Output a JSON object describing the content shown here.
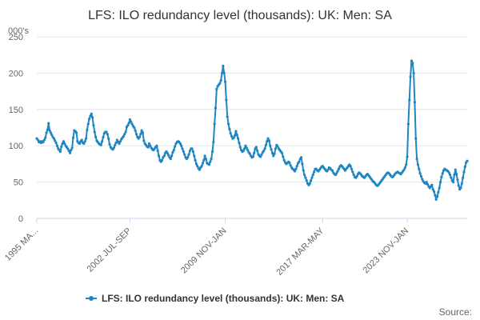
{
  "chart_data": {
    "type": "line",
    "title": "LFS: ILO redundancy level (thousands): UK: Men: SA",
    "unit_label": "000's",
    "source_label": "Source:",
    "xlabel": "",
    "ylabel": "",
    "ylim": [
      0,
      250
    ],
    "y_ticks": [
      0,
      50,
      100,
      150,
      200,
      250
    ],
    "x_tick_labels": [
      "1995 MA...",
      "2002 JUL-SEP",
      "2009 NOV-JAN",
      "2017 MAR-MAY",
      "2023 NOV-JAN"
    ],
    "x_tick_indices": [
      0,
      87,
      176,
      267,
      346
    ],
    "grid": true,
    "legend_position": "bottom-center",
    "color": "#1f86c1",
    "series": [
      {
        "name": "LFS: ILO redundancy level (thousands): UK: Men: SA",
        "values": [
          110,
          108,
          105,
          106,
          104,
          106,
          105,
          108,
          111,
          118,
          122,
          131,
          121,
          118,
          115,
          112,
          110,
          107,
          104,
          100,
          96,
          94,
          92,
          99,
          103,
          106,
          103,
          100,
          98,
          96,
          93,
          90,
          94,
          97,
          111,
          121,
          120,
          118,
          106,
          104,
          103,
          106,
          108,
          104,
          103,
          106,
          110,
          122,
          130,
          137,
          141,
          144,
          139,
          128,
          119,
          112,
          107,
          105,
          103,
          102,
          101,
          106,
          112,
          117,
          119,
          119,
          116,
          110,
          102,
          98,
          96,
          95,
          97,
          101,
          104,
          108,
          105,
          103,
          106,
          109,
          111,
          113,
          116,
          119,
          126,
          128,
          131,
          136,
          133,
          130,
          127,
          125,
          121,
          116,
          112,
          110,
          112,
          116,
          121,
          118,
          107,
          103,
          101,
          99,
          98,
          103,
          100,
          97,
          95,
          94,
          96,
          98,
          100,
          93,
          86,
          80,
          78,
          80,
          84,
          86,
          90,
          92,
          90,
          87,
          84,
          82,
          86,
          91,
          94,
          99,
          103,
          105,
          106,
          105,
          103,
          100,
          96,
          92,
          88,
          84,
          82,
          84,
          88,
          93,
          96,
          96,
          92,
          86,
          80,
          75,
          72,
          69,
          67,
          70,
          72,
          76,
          80,
          86,
          82,
          76,
          75,
          74,
          78,
          82,
          92,
          105,
          130,
          152,
          178,
          182,
          184,
          186,
          190,
          200,
          210,
          200,
          188,
          163,
          140,
          130,
          123,
          117,
          113,
          110,
          111,
          114,
          120,
          115,
          110,
          104,
          98,
          94,
          92,
          93,
          96,
          100,
          97,
          94,
          91,
          89,
          86,
          84,
          85,
          90,
          96,
          98,
          93,
          88,
          86,
          85,
          88,
          91,
          93,
          96,
          101,
          106,
          110,
          107,
          100,
          95,
          90,
          86,
          89,
          96,
          101,
          99,
          96,
          94,
          92,
          90,
          85,
          80,
          77,
          75,
          76,
          78,
          77,
          73,
          70,
          68,
          67,
          65,
          68,
          72,
          76,
          78,
          82,
          84,
          75,
          66,
          60,
          56,
          52,
          48,
          46,
          48,
          52,
          56,
          60,
          64,
          68,
          68,
          66,
          65,
          67,
          69,
          71,
          72,
          70,
          68,
          66,
          65,
          67,
          70,
          69,
          67,
          66,
          63,
          61,
          60,
          62,
          65,
          68,
          71,
          73,
          72,
          70,
          68,
          66,
          68,
          70,
          72,
          74,
          72,
          68,
          64,
          60,
          57,
          56,
          58,
          61,
          63,
          62,
          60,
          58,
          57,
          56,
          58,
          60,
          61,
          59,
          57,
          55,
          53,
          51,
          50,
          48,
          46,
          45,
          46,
          48,
          50,
          52,
          54,
          56,
          58,
          60,
          62,
          63,
          62,
          60,
          58,
          57,
          58,
          60,
          62,
          63,
          64,
          63,
          62,
          61,
          63,
          65,
          67,
          70,
          74,
          85,
          130,
          163,
          195,
          217,
          214,
          200,
          160,
          110,
          82,
          74,
          68,
          62,
          58,
          54,
          51,
          49,
          48,
          50,
          47,
          44,
          42,
          44,
          46,
          40,
          37,
          32,
          26,
          30,
          36,
          42,
          50,
          57,
          62,
          66,
          68,
          67,
          66,
          65,
          63,
          60,
          56,
          52,
          50,
          60,
          67,
          61,
          53,
          45,
          40,
          42,
          48,
          56,
          64,
          71,
          77,
          79
        ]
      }
    ]
  }
}
